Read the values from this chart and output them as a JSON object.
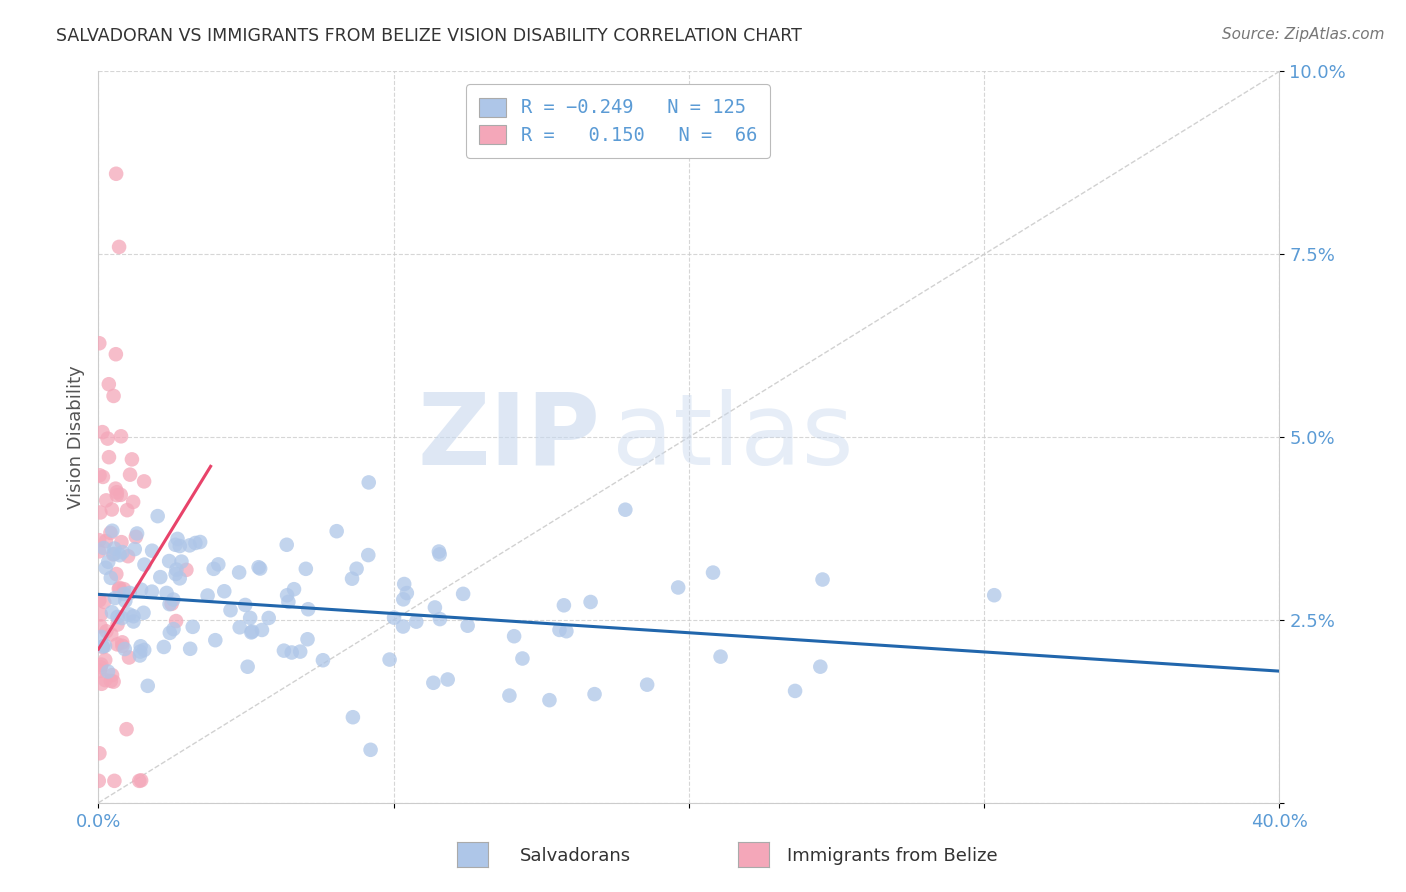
{
  "title": "SALVADORAN VS IMMIGRANTS FROM BELIZE VISION DISABILITY CORRELATION CHART",
  "source": "Source: ZipAtlas.com",
  "ylabel_label": "Vision Disability",
  "x_min": 0.0,
  "x_max": 0.4,
  "y_min": 0.0,
  "y_max": 0.1,
  "x_ticks": [
    0.0,
    0.1,
    0.2,
    0.3,
    0.4
  ],
  "y_ticks": [
    0.0,
    0.025,
    0.05,
    0.075,
    0.1
  ],
  "blue_R": -0.249,
  "blue_N": 125,
  "pink_R": 0.15,
  "pink_N": 66,
  "blue_color": "#aec6e8",
  "pink_color": "#f4a7b9",
  "blue_line_color": "#2166ac",
  "pink_line_color": "#e8436a",
  "watermark_zip": "ZIP",
  "watermark_atlas": "atlas",
  "grid_color": "#cccccc",
  "title_color": "#333333",
  "tick_label_color": "#5b9bd5",
  "legend_blue_label": "Salvadorans",
  "legend_pink_label": "Immigrants from Belize",
  "seed": 42,
  "blue_line_y_start": 0.0285,
  "blue_line_y_end": 0.018,
  "pink_line_x_start": 0.0,
  "pink_line_x_end": 0.038,
  "pink_line_y_start": 0.021,
  "pink_line_y_end": 0.046
}
